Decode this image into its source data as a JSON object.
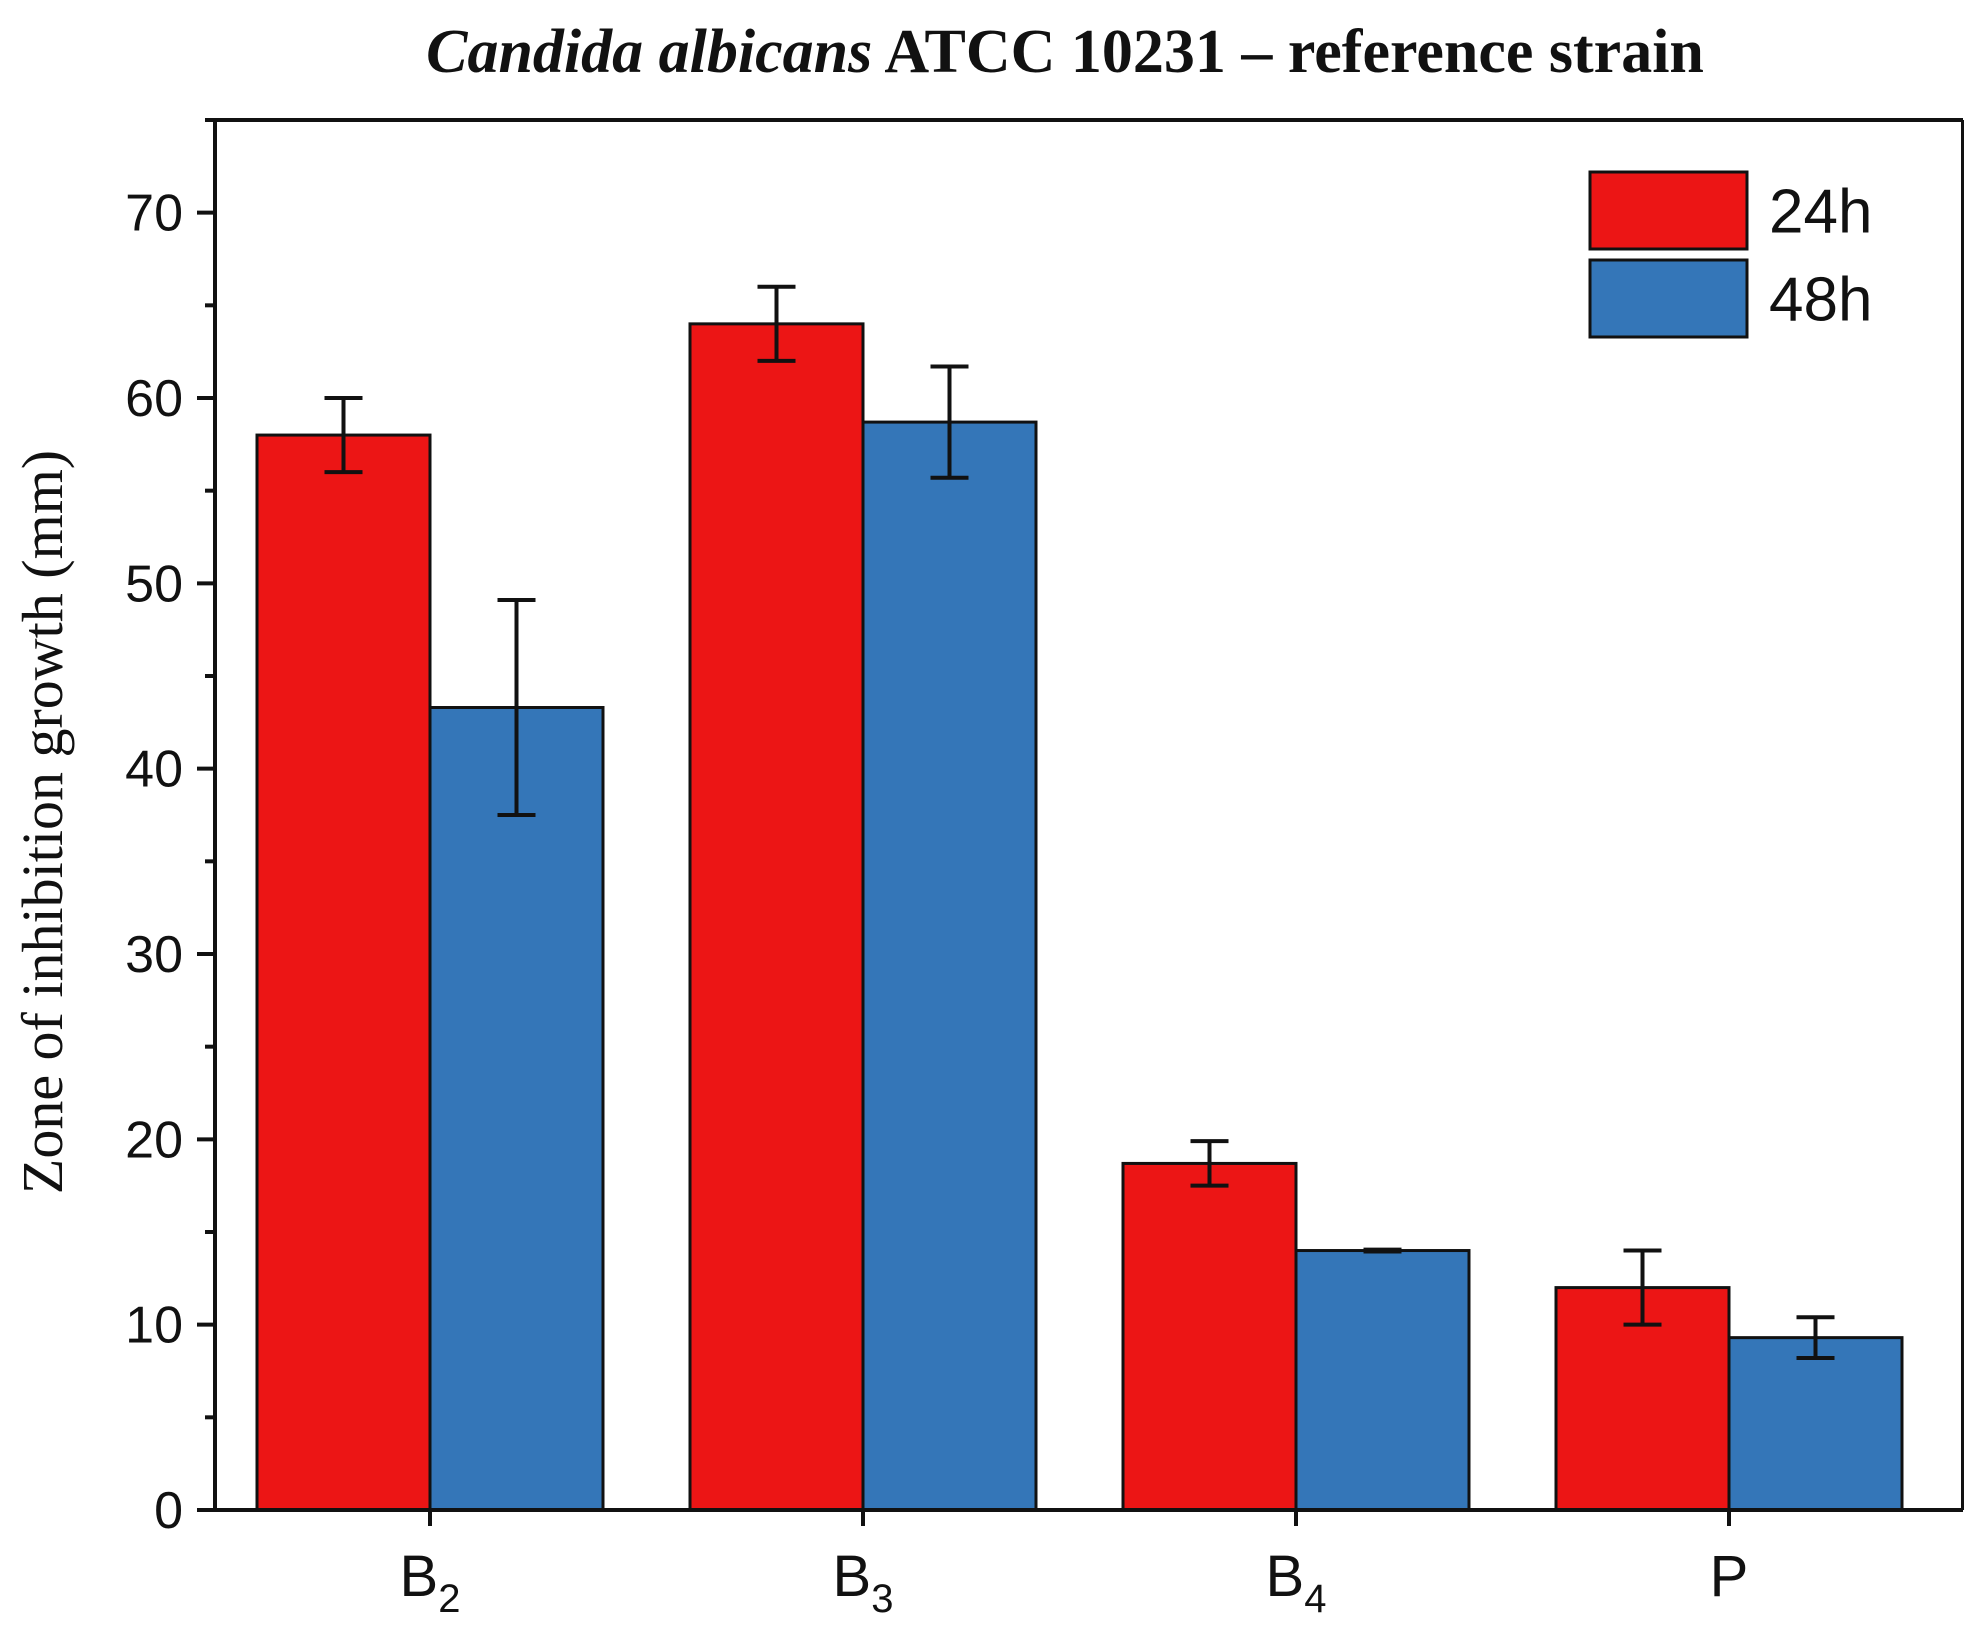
{
  "colors": {
    "24h": "#ec1515",
    "48h": "#3476b8",
    "axis": "#111111"
  },
  "chart_data": {
    "type": "bar",
    "title": {
      "italic": "Candida albicans",
      "rest": " ATCC 10231 – reference strain"
    },
    "xlabel": "",
    "ylabel": "Zone of inhibition growth (mm)",
    "ylim": [
      0,
      75
    ],
    "y_ticks": [
      0,
      10,
      20,
      30,
      40,
      50,
      60,
      70
    ],
    "y_minor_ticks": [
      5,
      15,
      25,
      35,
      45,
      55,
      65,
      75
    ],
    "categories": [
      {
        "base": "B",
        "sub": "2"
      },
      {
        "base": "B",
        "sub": "3"
      },
      {
        "base": "B",
        "sub": "4"
      },
      {
        "base": "P",
        "sub": ""
      }
    ],
    "series": [
      {
        "name": "24h",
        "values": [
          58,
          64,
          18.7,
          12
        ],
        "errors": [
          2,
          2,
          1.2,
          2
        ]
      },
      {
        "name": "48h",
        "values": [
          43.3,
          58.7,
          14,
          9.3
        ],
        "errors": [
          5.8,
          3.0,
          0.05,
          1.1
        ]
      }
    ],
    "legend_position": "top-right",
    "grid": false
  }
}
